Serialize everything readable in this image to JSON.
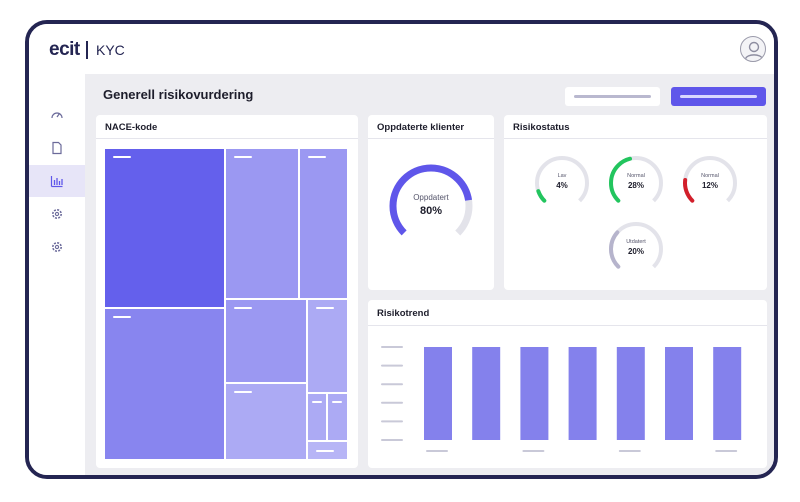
{
  "app": {
    "logo": "ecit",
    "name": "KYC"
  },
  "icons": {
    "avatar": "user-avatar-icon",
    "nav": [
      "dashboard-gauge-icon",
      "document-icon",
      "bar-chart-icon",
      "settings-gear-icon",
      "settings-gear-icon"
    ]
  },
  "sidebar": {
    "active_index": 2
  },
  "page": {
    "title": "Generell risikovurdering"
  },
  "colors": {
    "accent": "#5f56ea",
    "low": "#22c55e",
    "high": "#d21f2b",
    "muted": "#b6b4cc",
    "track": "#e3e3ea",
    "bar": "#8481ec"
  },
  "nace": {
    "title": "NACE-kode"
  },
  "clients": {
    "title": "Oppdaterte klienter",
    "label": "Oppdatert",
    "value_text": "80%",
    "value": 80
  },
  "risk": {
    "title": "Risikostatus",
    "items": [
      {
        "label": "Lav",
        "value_text": "4%",
        "value": 4,
        "color": "#22c55e"
      },
      {
        "label": "Normal",
        "value_text": "28%",
        "value": 28,
        "color": "#22c55e"
      },
      {
        "label": "Normal",
        "value_text": "12%",
        "value": 12,
        "color": "#d21f2b"
      },
      {
        "label": "Utdatert",
        "value_text": "20%",
        "value": 20,
        "color": "#b6b4cc"
      }
    ]
  },
  "trend": {
    "title": "Risikotrend",
    "chart_data": {
      "type": "bar",
      "values": [
        1,
        1,
        1,
        1,
        1,
        1,
        1
      ]
    }
  }
}
